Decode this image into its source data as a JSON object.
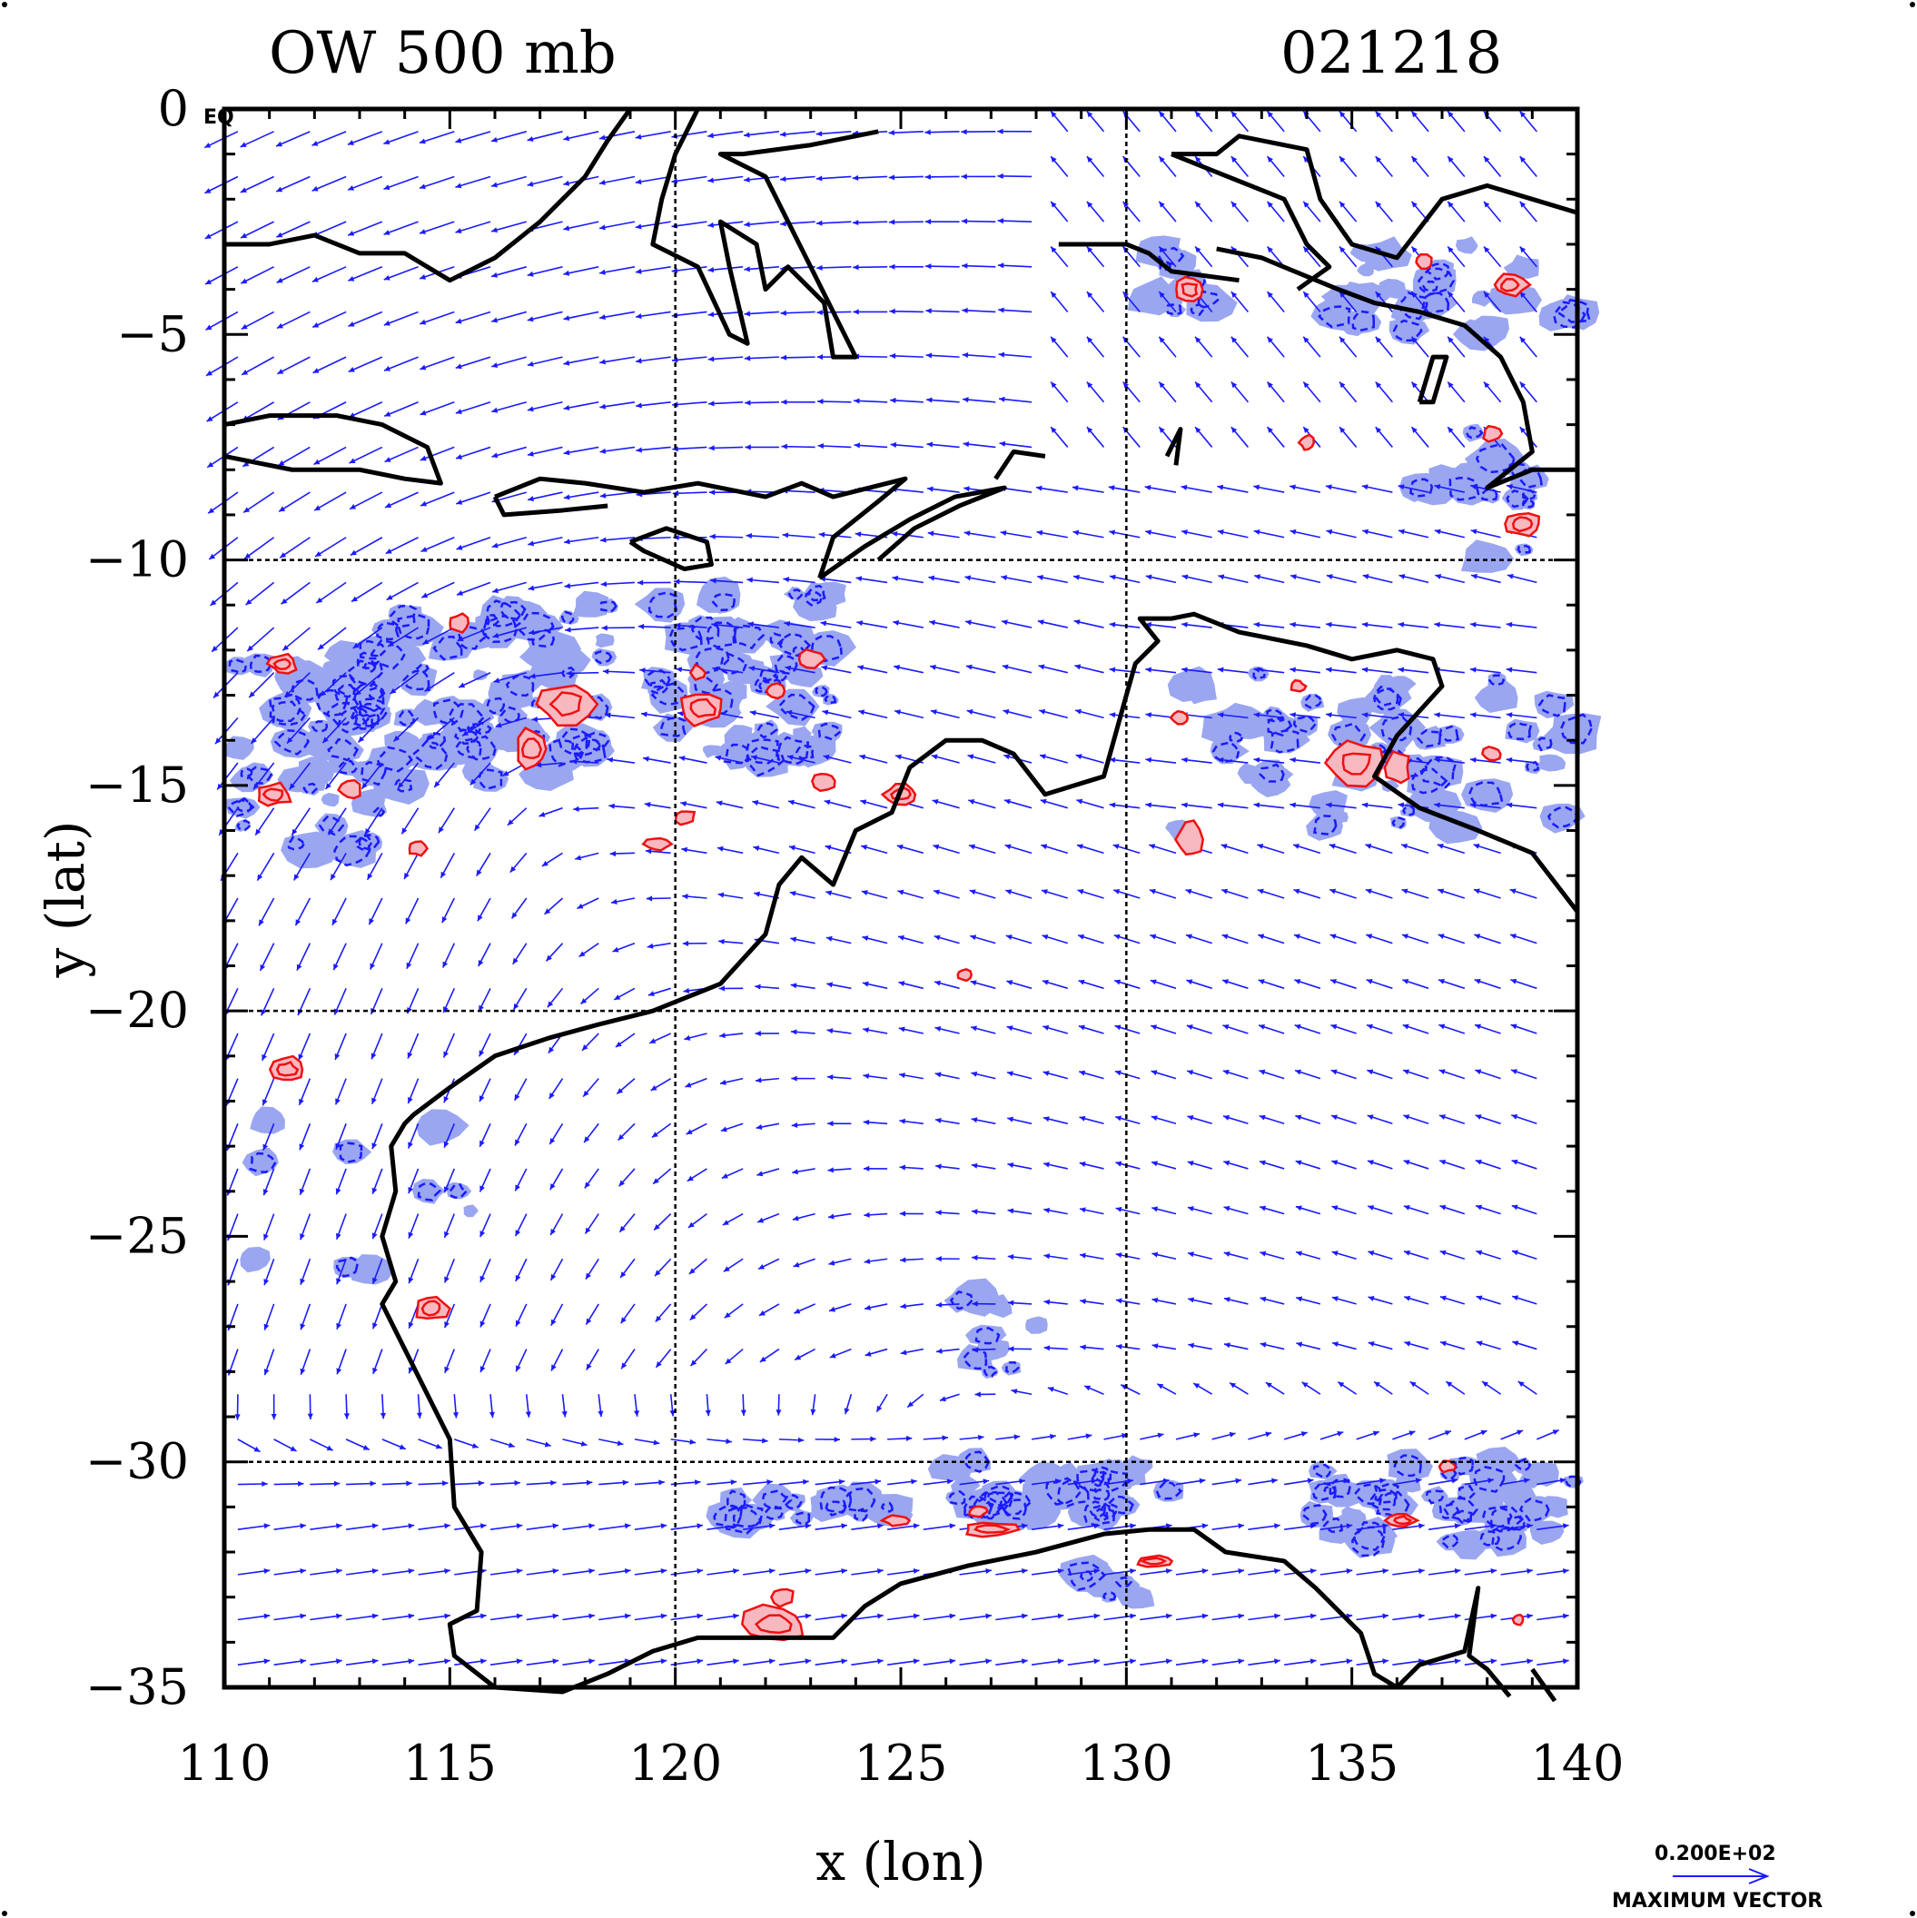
{
  "title_left": "OW 500 mb",
  "title_right": "021218",
  "equator_tag": "EQ",
  "xlabel": "x (lon)",
  "ylabel": "y (lat)",
  "x_ticks": [
    "110",
    "115",
    "120",
    "125",
    "130",
    "135",
    "140"
  ],
  "y_ticks": [
    "0",
    "−5",
    "−10",
    "−15",
    "−20",
    "−25",
    "−30",
    "−35"
  ],
  "legend": {
    "value": "0.200E+02",
    "label": "MAXIMUM VECTOR"
  },
  "colors": {
    "frame": "#000000",
    "coastline": "#000000",
    "vectors": "#1a1aff",
    "negative_contour": "#1a1aff",
    "negative_fill": "#9aa6f0",
    "positive_contour": "#ee1111",
    "positive_fill": "#f7b8c0"
  },
  "chart_data": {
    "type": "vector_field_contour_map",
    "field": "OW",
    "level": "500 mb",
    "date": "021218",
    "xlim": [
      110,
      140
    ],
    "ylim": [
      -35,
      0
    ],
    "grid_lines_x": [
      120,
      130
    ],
    "grid_lines_y": [
      -10,
      -20,
      -30
    ],
    "vector_reference": 20
  }
}
